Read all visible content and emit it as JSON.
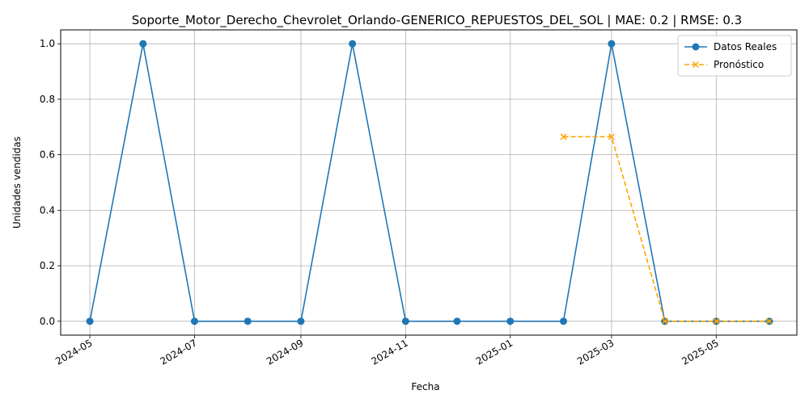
{
  "chart_data": {
    "type": "line",
    "title": "Soporte_Motor_Derecho_Chevrolet_Orlando-GENERICO_REPUESTOS_DEL_SOL | MAE: 0.2 | RMSE: 0.3",
    "xlabel": "Fecha",
    "ylabel": "Unidades vendidas",
    "xlim": [
      "2024-04-14",
      "2025-06-17"
    ],
    "ylim": [
      -0.05,
      1.05
    ],
    "x_ticks": [
      "2024-05",
      "2024-07",
      "2024-09",
      "2024-11",
      "2025-01",
      "2025-03",
      "2025-05"
    ],
    "y_ticks": [
      "0.0",
      "0.2",
      "0.4",
      "0.6",
      "0.8",
      "1.0"
    ],
    "grid": true,
    "legend_position": "top-right",
    "series": [
      {
        "name": "Datos Reales",
        "color": "#1f77b4",
        "marker": "circle",
        "linestyle": "solid",
        "x": [
          "2024-05-01",
          "2024-06-01",
          "2024-07-01",
          "2024-08-01",
          "2024-09-01",
          "2024-10-01",
          "2024-11-01",
          "2024-12-01",
          "2025-01-01",
          "2025-02-01",
          "2025-03-01",
          "2025-04-01",
          "2025-05-01",
          "2025-06-01"
        ],
        "values": [
          0,
          1,
          0,
          0,
          0,
          1,
          0,
          0,
          0,
          0,
          1,
          0,
          0,
          0
        ]
      },
      {
        "name": "Pronóstico",
        "color": "#ffa500",
        "marker": "x",
        "linestyle": "dashed",
        "x": [
          "2025-02-01",
          "2025-03-01",
          "2025-04-01",
          "2025-05-01",
          "2025-06-01"
        ],
        "values": [
          0.665,
          0.665,
          0,
          0,
          0
        ]
      }
    ]
  }
}
